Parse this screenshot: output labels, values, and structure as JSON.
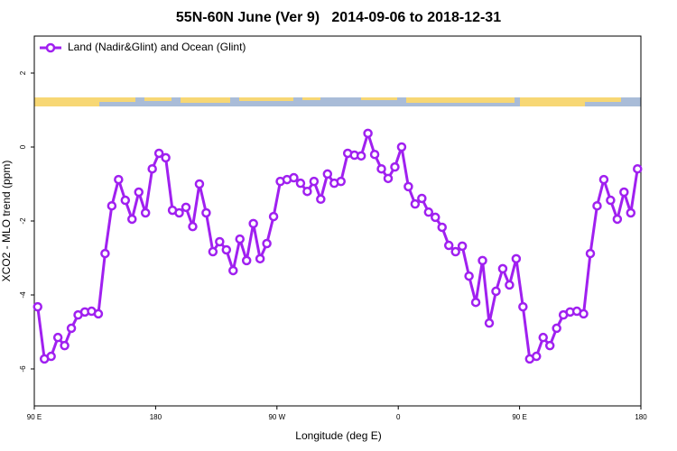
{
  "chart_data": {
    "type": "line",
    "title": "55N-60N June (Ver 9)   2014-09-06 to 2018-12-31",
    "x_label": "Longitude (deg E)",
    "y_label": "XCO2 - MLO trend (ppm)",
    "x": [
      92.5,
      97.5,
      102.5,
      107.5,
      112.5,
      117.5,
      122.5,
      127.5,
      132.5,
      137.5,
      142.5,
      147.5,
      152.5,
      157.5,
      162.5,
      167.5,
      172.5,
      177.5,
      182.5,
      187.5,
      192.5,
      197.5,
      202.5,
      207.5,
      212.5,
      217.5,
      222.5,
      227.5,
      232.5,
      237.5,
      242.5,
      247.5,
      252.5,
      257.5,
      262.5,
      267.5,
      272.5,
      277.5,
      282.5,
      287.5,
      292.5,
      297.5,
      302.5,
      307.5,
      312.5,
      317.5,
      322.5,
      327.5,
      332.5,
      337.5,
      342.5,
      347.5,
      352.5,
      357.5,
      362.5,
      367.5,
      372.5,
      377.5,
      382.5,
      387.5,
      392.5,
      397.5,
      402.5,
      407.5,
      412.5,
      417.5,
      422.5,
      427.5,
      432.5,
      437.5,
      442.5,
      447.5,
      452.5,
      457.5,
      462.5,
      467.5,
      472.5,
      477.5,
      482.5,
      487.5,
      492.5,
      497.5,
      502.5,
      507.5,
      512.5,
      517.5,
      522.5,
      527.5,
      532.5,
      537.5
    ],
    "series": [
      {
        "name": "Land (Nadir&Glint) and Ocean (Glint)",
        "color": "#a020f0",
        "values": [
          -4.32,
          -5.73,
          -5.66,
          -5.15,
          -5.37,
          -4.9,
          -4.54,
          -4.46,
          -4.44,
          -4.51,
          -2.88,
          -1.59,
          -0.88,
          -1.44,
          -1.95,
          -1.22,
          -1.78,
          -0.59,
          -0.17,
          -0.29,
          -1.71,
          -1.78,
          -1.63,
          -2.15,
          -1.0,
          -1.78,
          -2.83,
          -2.56,
          -2.78,
          -3.34,
          -2.49,
          -3.07,
          -2.07,
          -3.02,
          -2.61,
          -1.88,
          -0.93,
          -0.88,
          -0.83,
          -0.98,
          -1.2,
          -0.93,
          -1.41,
          -0.73,
          -0.98,
          -0.93,
          -0.17,
          -0.22,
          -0.24,
          0.37,
          -0.2,
          -0.59,
          -0.85,
          -0.54,
          0.0,
          -1.07,
          -1.54,
          -1.39,
          -1.76,
          -1.9,
          -2.17,
          -2.66,
          -2.83,
          -2.68,
          -3.49,
          -4.2,
          -3.07,
          -4.76,
          -3.9,
          -3.29,
          -3.73,
          -3.02,
          -4.32,
          -5.73,
          -5.66,
          -5.15,
          -5.37,
          -4.9,
          -4.54,
          -4.46,
          -4.44,
          -4.51,
          -2.88,
          -1.59,
          -0.88,
          -1.44,
          -1.95,
          -1.22,
          -1.78,
          -0.59
        ]
      }
    ],
    "xlim": [
      90,
      540
    ],
    "xticks": [
      {
        "value": 90,
        "label": "90 E"
      },
      180,
      {
        "value": 270,
        "label": "90 W"
      },
      {
        "value": 360,
        "label": "0"
      },
      {
        "value": 450,
        "label": "90 E"
      },
      {
        "value": 540,
        "label": "180"
      }
    ],
    "ylim": [
      -7,
      3
    ],
    "yticks": [
      -6,
      -4,
      -2,
      0,
      2
    ],
    "grid": false,
    "legend": "topleft"
  }
}
